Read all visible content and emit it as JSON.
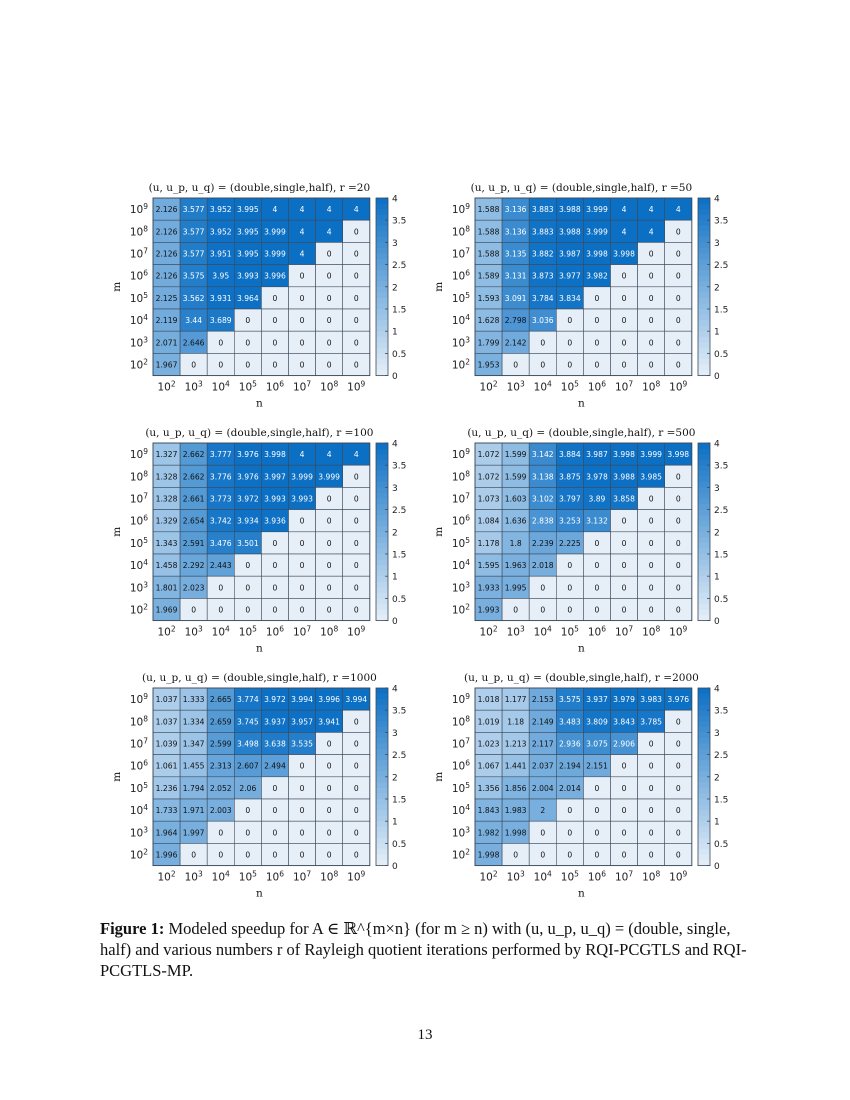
{
  "figure": {
    "caption_label": "Figure 1:",
    "caption_text": " Modeled speedup for A ∈ ℝ^{m×n} (for m ≥ n) with (u, u_p, u_q) = (double, single, half) and various numbers r of Rayleigh quotient iterations performed by RQI-PCGTLS and RQI-PCGTLS-MP."
  },
  "page_number": "13",
  "chart_data": [
    {
      "type": "heatmap",
      "title": "(u, u_p, u_q) = (double,single,half), r =20",
      "xlabel": "n",
      "ylabel": "m",
      "x_ticks": [
        "10^2",
        "10^3",
        "10^4",
        "10^5",
        "10^6",
        "10^7",
        "10^8",
        "10^9"
      ],
      "y_ticks": [
        "10^9",
        "10^8",
        "10^7",
        "10^6",
        "10^5",
        "10^4",
        "10^3",
        "10^2"
      ],
      "colorbar": {
        "min": 0,
        "max": 4,
        "ticks": [
          "4",
          "3.5",
          "3",
          "2.5",
          "2",
          "1.5",
          "1",
          "0.5",
          "0"
        ]
      },
      "cells": [
        [
          "2.126",
          "3.577",
          "3.952",
          "3.995",
          "4",
          "4",
          "4",
          "4"
        ],
        [
          "2.126",
          "3.577",
          "3.952",
          "3.995",
          "3.999",
          "4",
          "4",
          "0"
        ],
        [
          "2.126",
          "3.577",
          "3.951",
          "3.995",
          "3.999",
          "4",
          "0",
          "0"
        ],
        [
          "2.126",
          "3.575",
          "3.95",
          "3.993",
          "3.996",
          "0",
          "0",
          "0"
        ],
        [
          "2.125",
          "3.562",
          "3.931",
          "3.964",
          "0",
          "0",
          "0",
          "0"
        ],
        [
          "2.119",
          "3.44",
          "3.689",
          "0",
          "0",
          "0",
          "0",
          "0"
        ],
        [
          "2.071",
          "2.646",
          "0",
          "0",
          "0",
          "0",
          "0",
          "0"
        ],
        [
          "1.967",
          "0",
          "0",
          "0",
          "0",
          "0",
          "0",
          "0"
        ]
      ]
    },
    {
      "type": "heatmap",
      "title": "(u, u_p, u_q) = (double,single,half), r =50",
      "xlabel": "n",
      "ylabel": "m",
      "x_ticks": [
        "10^2",
        "10^3",
        "10^4",
        "10^5",
        "10^6",
        "10^7",
        "10^8",
        "10^9"
      ],
      "y_ticks": [
        "10^9",
        "10^8",
        "10^7",
        "10^6",
        "10^5",
        "10^4",
        "10^3",
        "10^2"
      ],
      "colorbar": {
        "min": 0,
        "max": 4,
        "ticks": [
          "4",
          "3.5",
          "3",
          "2.5",
          "2",
          "1.5",
          "1",
          "0.5",
          "0"
        ]
      },
      "cells": [
        [
          "1.588",
          "3.136",
          "3.883",
          "3.988",
          "3.999",
          "4",
          "4",
          "4"
        ],
        [
          "1.588",
          "3.136",
          "3.883",
          "3.988",
          "3.999",
          "4",
          "4",
          "0"
        ],
        [
          "1.588",
          "3.135",
          "3.882",
          "3.987",
          "3.998",
          "3.998",
          "0",
          "0"
        ],
        [
          "1.589",
          "3.131",
          "3.873",
          "3.977",
          "3.982",
          "0",
          "0",
          "0"
        ],
        [
          "1.593",
          "3.091",
          "3.784",
          "3.834",
          "0",
          "0",
          "0",
          "0"
        ],
        [
          "1.628",
          "2.798",
          "3.036",
          "0",
          "0",
          "0",
          "0",
          "0"
        ],
        [
          "1.799",
          "2.142",
          "0",
          "0",
          "0",
          "0",
          "0",
          "0"
        ],
        [
          "1.953",
          "0",
          "0",
          "0",
          "0",
          "0",
          "0",
          "0"
        ]
      ]
    },
    {
      "type": "heatmap",
      "title": "(u, u_p, u_q) = (double,single,half), r =100",
      "xlabel": "n",
      "ylabel": "m",
      "x_ticks": [
        "10^2",
        "10^3",
        "10^4",
        "10^5",
        "10^6",
        "10^7",
        "10^8",
        "10^9"
      ],
      "y_ticks": [
        "10^9",
        "10^8",
        "10^7",
        "10^6",
        "10^5",
        "10^4",
        "10^3",
        "10^2"
      ],
      "colorbar": {
        "min": 0,
        "max": 4,
        "ticks": [
          "4",
          "3.5",
          "3",
          "2.5",
          "2",
          "1.5",
          "1",
          "0.5",
          "0"
        ]
      },
      "cells": [
        [
          "1.327",
          "2.662",
          "3.777",
          "3.976",
          "3.998",
          "4",
          "4",
          "4"
        ],
        [
          "1.328",
          "2.662",
          "3.776",
          "3.976",
          "3.997",
          "3.999",
          "3.999",
          "0"
        ],
        [
          "1.328",
          "2.661",
          "3.773",
          "3.972",
          "3.993",
          "3.993",
          "0",
          "0"
        ],
        [
          "1.329",
          "2.654",
          "3.742",
          "3.934",
          "3.936",
          "0",
          "0",
          "0"
        ],
        [
          "1.343",
          "2.591",
          "3.476",
          "3.501",
          "0",
          "0",
          "0",
          "0"
        ],
        [
          "1.458",
          "2.292",
          "2.443",
          "0",
          "0",
          "0",
          "0",
          "0"
        ],
        [
          "1.801",
          "2.023",
          "0",
          "0",
          "0",
          "0",
          "0",
          "0"
        ],
        [
          "1.969",
          "0",
          "0",
          "0",
          "0",
          "0",
          "0",
          "0"
        ]
      ]
    },
    {
      "type": "heatmap",
      "title": "(u, u_p, u_q) = (double,single,half), r =500",
      "xlabel": "n",
      "ylabel": "m",
      "x_ticks": [
        "10^2",
        "10^3",
        "10^4",
        "10^5",
        "10^6",
        "10^7",
        "10^8",
        "10^9"
      ],
      "y_ticks": [
        "10^9",
        "10^8",
        "10^7",
        "10^6",
        "10^5",
        "10^4",
        "10^3",
        "10^2"
      ],
      "colorbar": {
        "min": 0,
        "max": 4,
        "ticks": [
          "4",
          "3.5",
          "3",
          "2.5",
          "2",
          "1.5",
          "1",
          "0.5",
          "0"
        ]
      },
      "cells": [
        [
          "1.072",
          "1.599",
          "3.142",
          "3.884",
          "3.987",
          "3.998",
          "3.999",
          "3.998"
        ],
        [
          "1.072",
          "1.599",
          "3.138",
          "3.875",
          "3.978",
          "3.988",
          "3.985",
          "0"
        ],
        [
          "1.073",
          "1.603",
          "3.102",
          "3.797",
          "3.89",
          "3.858",
          "0",
          "0"
        ],
        [
          "1.084",
          "1.636",
          "2.838",
          "3.253",
          "3.132",
          "0",
          "0",
          "0"
        ],
        [
          "1.178",
          "1.8",
          "2.239",
          "2.225",
          "0",
          "0",
          "0",
          "0"
        ],
        [
          "1.595",
          "1.963",
          "2.018",
          "0",
          "0",
          "0",
          "0",
          "0"
        ],
        [
          "1.933",
          "1.995",
          "0",
          "0",
          "0",
          "0",
          "0",
          "0"
        ],
        [
          "1.993",
          "0",
          "0",
          "0",
          "0",
          "0",
          "0",
          "0"
        ]
      ]
    },
    {
      "type": "heatmap",
      "title": "(u, u_p, u_q) = (double,single,half), r =1000",
      "xlabel": "n",
      "ylabel": "m",
      "x_ticks": [
        "10^2",
        "10^3",
        "10^4",
        "10^5",
        "10^6",
        "10^7",
        "10^8",
        "10^9"
      ],
      "y_ticks": [
        "10^9",
        "10^8",
        "10^7",
        "10^6",
        "10^5",
        "10^4",
        "10^3",
        "10^2"
      ],
      "colorbar": {
        "min": 0,
        "max": 4,
        "ticks": [
          "4",
          "3.5",
          "3",
          "2.5",
          "2",
          "1.5",
          "1",
          "0.5",
          "0"
        ]
      },
      "cells": [
        [
          "1.037",
          "1.333",
          "2.665",
          "3.774",
          "3.972",
          "3.994",
          "3.996",
          "3.994"
        ],
        [
          "1.037",
          "1.334",
          "2.659",
          "3.745",
          "3.937",
          "3.957",
          "3.941",
          "0"
        ],
        [
          "1.039",
          "1.347",
          "2.599",
          "3.498",
          "3.638",
          "3.535",
          "0",
          "0"
        ],
        [
          "1.061",
          "1.455",
          "2.313",
          "2.607",
          "2.494",
          "0",
          "0",
          "0"
        ],
        [
          "1.236",
          "1.794",
          "2.052",
          "2.06",
          "0",
          "0",
          "0",
          "0"
        ],
        [
          "1.733",
          "1.971",
          "2.003",
          "0",
          "0",
          "0",
          "0",
          "0"
        ],
        [
          "1.964",
          "1.997",
          "0",
          "0",
          "0",
          "0",
          "0",
          "0"
        ],
        [
          "1.996",
          "0",
          "0",
          "0",
          "0",
          "0",
          "0",
          "0"
        ]
      ]
    },
    {
      "type": "heatmap",
      "title": "(u, u_p, u_q) = (double,single,half), r =2000",
      "xlabel": "n",
      "ylabel": "m",
      "x_ticks": [
        "10^2",
        "10^3",
        "10^4",
        "10^5",
        "10^6",
        "10^7",
        "10^8",
        "10^9"
      ],
      "y_ticks": [
        "10^9",
        "10^8",
        "10^7",
        "10^6",
        "10^5",
        "10^4",
        "10^3",
        "10^2"
      ],
      "colorbar": {
        "min": 0,
        "max": 4,
        "ticks": [
          "4",
          "3.5",
          "3",
          "2.5",
          "2",
          "1.5",
          "1",
          "0.5",
          "0"
        ]
      },
      "cells": [
        [
          "1.018",
          "1.177",
          "2.153",
          "3.575",
          "3.937",
          "3.979",
          "3.983",
          "3.976"
        ],
        [
          "1.019",
          "1.18",
          "2.149",
          "3.483",
          "3.809",
          "3.843",
          "3.785",
          "0"
        ],
        [
          "1.023",
          "1.213",
          "2.117",
          "2.936",
          "3.075",
          "2.906",
          "0",
          "0"
        ],
        [
          "1.067",
          "1.441",
          "2.037",
          "2.194",
          "2.151",
          "0",
          "0",
          "0"
        ],
        [
          "1.356",
          "1.856",
          "2.004",
          "2.014",
          "0",
          "0",
          "0",
          "0"
        ],
        [
          "1.843",
          "1.983",
          "2",
          "0",
          "0",
          "0",
          "0",
          "0"
        ],
        [
          "1.982",
          "1.998",
          "0",
          "0",
          "0",
          "0",
          "0",
          "0"
        ],
        [
          "1.998",
          "0",
          "0",
          "0",
          "0",
          "0",
          "0",
          "0"
        ]
      ]
    }
  ]
}
